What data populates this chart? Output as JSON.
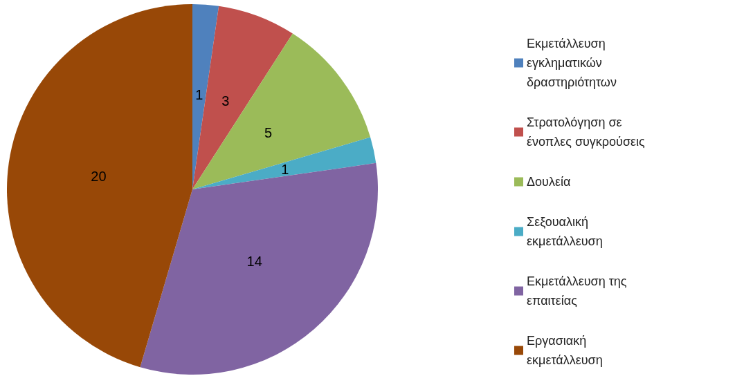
{
  "chart_data": {
    "type": "pie",
    "categories": [
      "Εκμετάλλευση εγκληματικών δραστηριότητων",
      "Στρατολόγηση σε ένοπλες συγκρούσεις",
      "Δουλεία",
      "Σεξουαλική εκμετάλλευση",
      "Εκμετάλλευση της επαιτείας",
      "Εργασιακή εκμετάλλευση"
    ],
    "values": [
      1,
      3,
      5,
      1,
      14,
      20
    ],
    "colors": [
      "#4f81bd",
      "#c0504d",
      "#9bbb59",
      "#4bacc6",
      "#8064a2",
      "#984807"
    ],
    "data_labels": true,
    "legend": "right"
  }
}
